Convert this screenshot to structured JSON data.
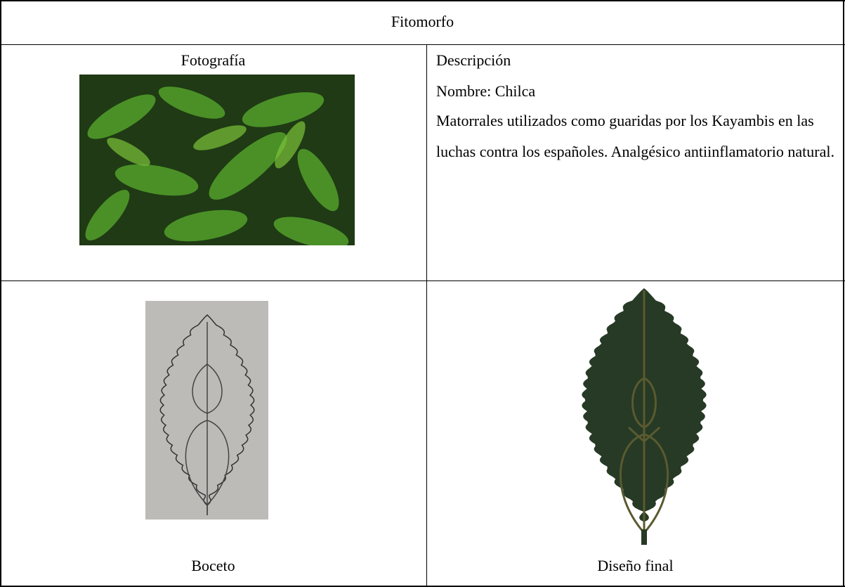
{
  "table": {
    "title": "Fitomorfo",
    "rows": [
      {
        "photo_label": "Fotografía",
        "description_label": "Descripción",
        "name": "Nombre: Chilca",
        "description": "Matorrales utilizados como guaridas por los Kayambis en las luchas contra los españoles. Analgésico antiinflamatorio natural."
      },
      {
        "sketch_label": "Boceto",
        "final_label": "Diseño final"
      }
    ]
  }
}
